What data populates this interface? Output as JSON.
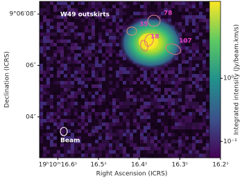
{
  "chart_data": {
    "type": "image",
    "xlabel": "Right Ascension (ICRS)",
    "ylabel": "Declination (ICRS)",
    "xlim": [
      16.645,
      16.2
    ],
    "xticks": [
      {
        "value": 16.6,
        "label": "19ʰ10ᵐ16.6ˢ"
      },
      {
        "value": 16.5,
        "label": "16.5ˢ"
      },
      {
        "value": 16.4,
        "label": "16.4ˢ"
      },
      {
        "value": 16.3,
        "label": "16.3ˢ"
      },
      {
        "value": 16.2,
        "label": "16.2ˢ"
      }
    ],
    "ylim": [
      2.41,
      8.49
    ],
    "yticks": [
      {
        "value": 8,
        "label": "9°06′08″"
      },
      {
        "value": 6,
        "label": "06″"
      },
      {
        "value": 4,
        "label": "04″"
      }
    ],
    "colorbar": {
      "label": "Integrated intensity (Jy/beam.km/s)",
      "log": true,
      "lim": [
        0.055,
        16.6
      ],
      "ticks": [
        {
          "value": 1,
          "label": "10⁰"
        },
        {
          "value": 0.1,
          "label": "10⁻¹"
        }
      ]
    },
    "title": "W49 outskirts",
    "annotations": [
      "78",
      "35",
      "18",
      "107",
      "Beam"
    ]
  }
}
